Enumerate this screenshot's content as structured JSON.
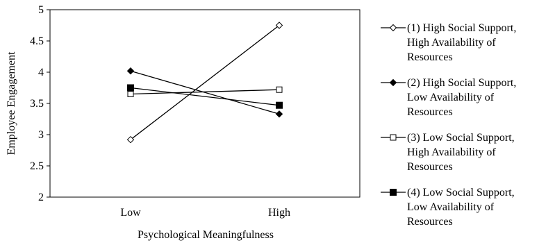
{
  "chart_data": {
    "type": "line",
    "xlabel": "Psychological Meaningfulness",
    "ylabel": "Employee Engagement",
    "categories": [
      "Low",
      "High"
    ],
    "ylim": [
      2,
      5
    ],
    "yticks": [
      "2",
      "2.5",
      "3",
      "3.5",
      "4",
      "4.5",
      "5"
    ],
    "grid": false,
    "legend_position": "right",
    "series": [
      {
        "name": "(1) High Social Support, High Availability of Resources",
        "legend_lines": [
          "(1) High Social Support,",
          "High Availability of",
          "Resources"
        ],
        "marker": "open-diamond",
        "values": [
          2.92,
          4.75
        ]
      },
      {
        "name": "(2) High Social Support, Low Availability of Resources",
        "legend_lines": [
          "(2) High Social Support,",
          "Low Availability of",
          "Resources"
        ],
        "marker": "filled-diamond",
        "values": [
          4.02,
          3.33
        ]
      },
      {
        "name": "(3) Low Social Support, High Availability of Resources",
        "legend_lines": [
          "(3) Low Social Support,",
          "High Availability of",
          "Resources"
        ],
        "marker": "open-square",
        "values": [
          3.65,
          3.72
        ]
      },
      {
        "name": "(4) Low Social Support, Low Availability of Resources",
        "legend_lines": [
          "(4) Low Social Support,",
          "Low Availability of",
          "Resources"
        ],
        "marker": "filled-square",
        "values": [
          3.75,
          3.47
        ]
      }
    ]
  }
}
